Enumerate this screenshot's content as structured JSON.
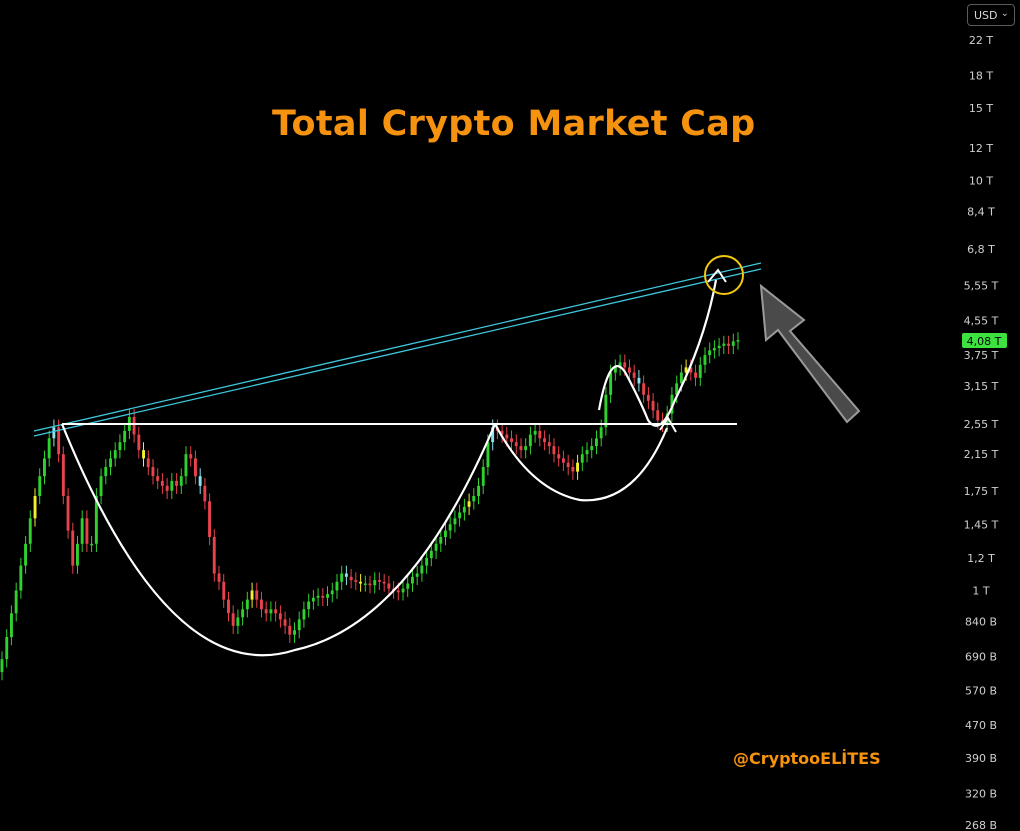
{
  "header": {
    "title": "Total Crypto Market Cap",
    "currency_label": "USD",
    "watermark": "@CryptooELİTES"
  },
  "colors": {
    "background": "#000000",
    "title": "#f5920f",
    "up_candle": "#2fd12f",
    "down_candle": "#e8424c",
    "yellow_candle": "#f3ef2a",
    "cyan_candle": "#8fe3f0",
    "trendline": "#3fc7dd",
    "pattern": "#ffffff",
    "highlight_circle": "#f2c80f",
    "arrow": "#555555",
    "last_price_bg": "#3ee23e"
  },
  "chart_data": {
    "type": "candlestick",
    "title": "Total Crypto Market Cap",
    "y_scale": "log",
    "y_ticks": [
      "22 T",
      "18 T",
      "15 T",
      "12 T",
      "10 T",
      "8,4 T",
      "6,8 T",
      "5,55 T",
      "4,55 T",
      "3,75 T",
      "3,15 T",
      "2,55 T",
      "2,15 T",
      "1,75 T",
      "1,45 T",
      "1,2 T",
      "1 T",
      "840 B",
      "690 B",
      "570 B",
      "470 B",
      "390 B",
      "320 B",
      "268 B"
    ],
    "y_tick_values": [
      22000,
      18000,
      15000,
      12000,
      10000,
      8400,
      6800,
      5550,
      4550,
      3750,
      3150,
      2550,
      2150,
      1750,
      1450,
      1200,
      1000,
      840,
      690,
      570,
      470,
      390,
      320,
      268
    ],
    "y_unit": "billion USD",
    "last_price_label": "4,08 T",
    "last_price": 4080,
    "series": [
      {
        "name": "",
        "closes": [
          680,
          770,
          880,
          1000,
          1150,
          1300,
          1500,
          1700,
          1900,
          2100,
          2350,
          2500,
          2150,
          1700,
          1400,
          1150,
          1300,
          1500,
          1300,
          1300,
          1700,
          1900,
          2000,
          2100,
          2200,
          2300,
          2450,
          2650,
          2400,
          2200,
          2100,
          2000,
          1900,
          1850,
          1800,
          1750,
          1850,
          1800,
          1900,
          2150,
          2100,
          1900,
          1800,
          1650,
          1350,
          1100,
          1050,
          950,
          880,
          820,
          860,
          900,
          950,
          1000,
          950,
          900,
          880,
          900,
          880,
          850,
          820,
          780,
          800,
          850,
          900,
          940,
          960,
          970,
          960,
          980,
          1000,
          1050,
          1100,
          1080,
          1060,
          1050,
          1040,
          1040,
          1030,
          1060,
          1050,
          1040,
          1010,
          1000,
          990,
          1010,
          1040,
          1080,
          1100,
          1150,
          1200,
          1250,
          1300,
          1350,
          1400,
          1450,
          1500,
          1550,
          1600,
          1650,
          1700,
          1800,
          2000,
          2300,
          2500,
          2450,
          2400,
          2350,
          2300,
          2250,
          2200,
          2250,
          2400,
          2450,
          2350,
          2300,
          2250,
          2150,
          2100,
          2050,
          2000,
          1950,
          2050,
          2150,
          2200,
          2250,
          2350,
          2500,
          3000,
          3400,
          3500,
          3600,
          3500,
          3400,
          3300,
          3200,
          3000,
          2900,
          2750,
          2600,
          2550,
          2700,
          3000,
          3200,
          3400,
          3500,
          3400,
          3300,
          3550,
          3750,
          3850,
          3900,
          3950,
          4000,
          3950,
          4050,
          4080
        ]
      }
    ],
    "annotations": [
      "ascending resistance trendline",
      "horizontal neckline at ~2,55 T",
      "cup and handle pattern curves",
      "projection arrow to ~6,2 T",
      "highlight circle at target"
    ]
  }
}
